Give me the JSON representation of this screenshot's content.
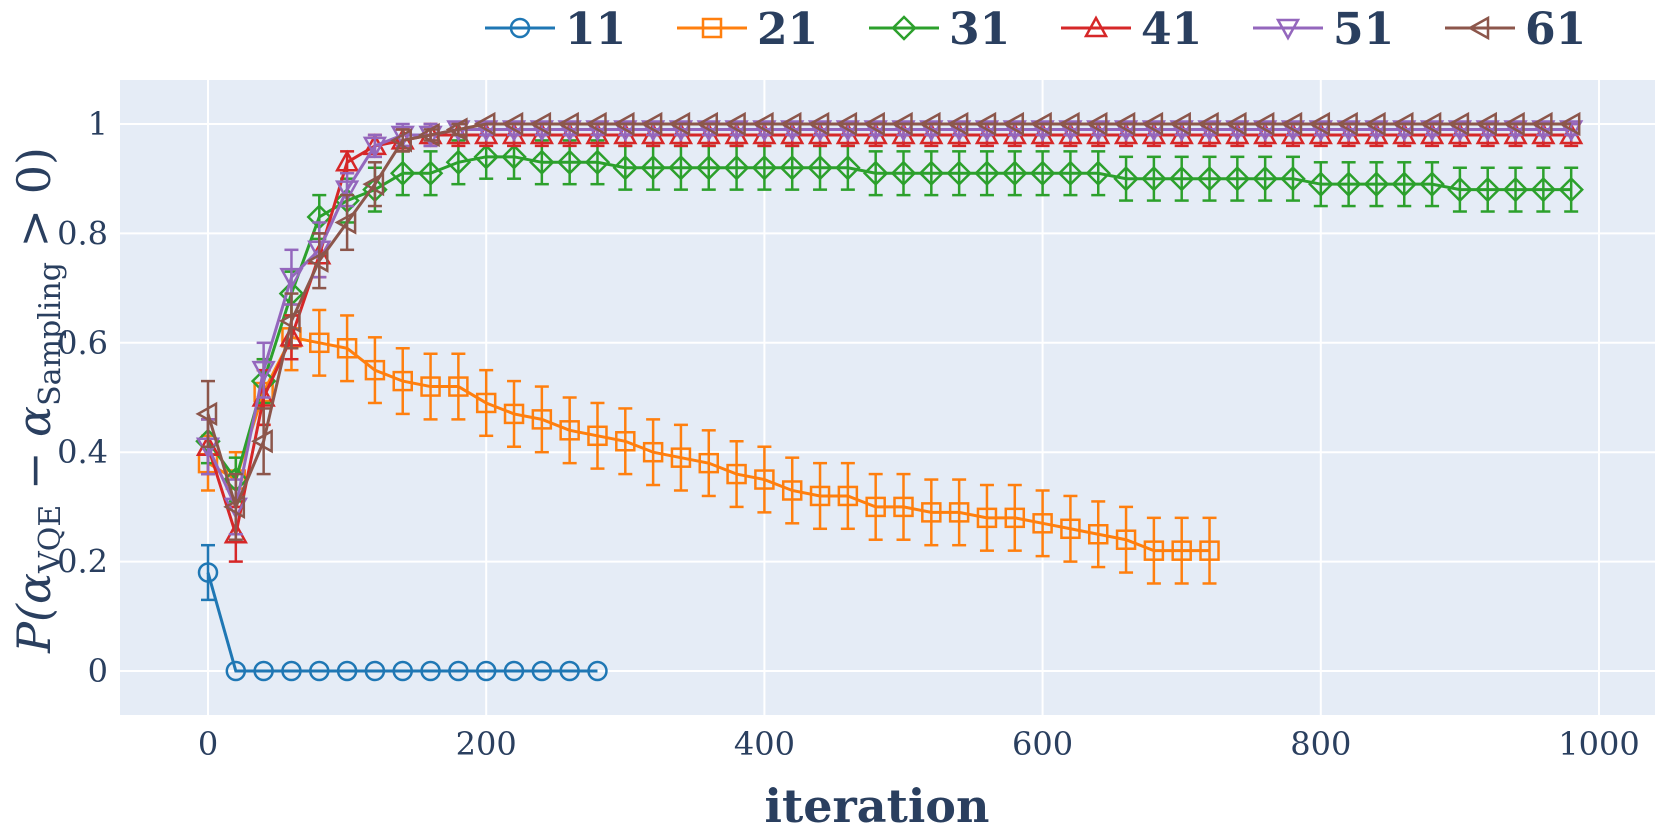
{
  "chart_data": {
    "type": "line",
    "xlabel": "iteration",
    "ylabel": {
      "prefix": "P(α",
      "sub1": "VQE",
      "mid": " − α",
      "sub2": "Sampling",
      "suffix": " > 0)"
    },
    "xlim": [
      -63,
      1000
    ],
    "ylim": [
      -0.075,
      1.08
    ],
    "xticks": [
      0,
      200,
      400,
      600,
      800,
      1000
    ],
    "xtick_labels": [
      "0",
      "200",
      "400",
      "600",
      "800",
      "1000"
    ],
    "yticks": [
      0,
      0.2,
      0.4,
      0.6,
      0.8,
      1
    ],
    "ytick_labels": [
      "0",
      "0.2",
      "0.4",
      "0.6",
      "0.8",
      "1"
    ],
    "legend_position": "top",
    "colors": {
      "plot_bg": "#e5ecf6",
      "grid": "#ffffff",
      "text": "#2a3f5f"
    },
    "series": [
      {
        "name": "11",
        "color": "#1f77b4",
        "marker": "circle",
        "x": [
          0,
          20,
          40,
          60,
          80,
          100,
          120,
          140,
          160,
          180,
          200,
          220,
          240,
          260,
          280
        ],
        "y": [
          0.18,
          0,
          0,
          0,
          0,
          0,
          0,
          0,
          0,
          0,
          0,
          0,
          0,
          0,
          0
        ],
        "err": [
          0.05,
          0,
          0,
          0,
          0,
          0,
          0,
          0,
          0,
          0,
          0,
          0,
          0,
          0,
          0
        ]
      },
      {
        "name": "21",
        "color": "#ff7f0e",
        "marker": "square",
        "x": [
          0,
          20,
          40,
          60,
          80,
          100,
          120,
          140,
          160,
          180,
          200,
          220,
          240,
          260,
          280,
          300,
          320,
          340,
          360,
          380,
          400,
          420,
          440,
          460,
          480,
          500,
          520,
          540,
          560,
          580,
          600,
          620,
          640,
          660,
          680,
          700,
          720
        ],
        "y": [
          0.38,
          0.35,
          0.51,
          0.61,
          0.6,
          0.59,
          0.55,
          0.53,
          0.52,
          0.52,
          0.49,
          0.47,
          0.46,
          0.44,
          0.43,
          0.42,
          0.4,
          0.39,
          0.38,
          0.36,
          0.35,
          0.33,
          0.32,
          0.32,
          0.3,
          0.3,
          0.29,
          0.29,
          0.28,
          0.28,
          0.27,
          0.26,
          0.25,
          0.24,
          0.22,
          0.22,
          0.22
        ],
        "err": [
          0.05,
          0.05,
          0.06,
          0.06,
          0.06,
          0.06,
          0.06,
          0.06,
          0.06,
          0.06,
          0.06,
          0.06,
          0.06,
          0.06,
          0.06,
          0.06,
          0.06,
          0.06,
          0.06,
          0.06,
          0.06,
          0.06,
          0.06,
          0.06,
          0.06,
          0.06,
          0.06,
          0.06,
          0.06,
          0.06,
          0.06,
          0.06,
          0.06,
          0.06,
          0.06,
          0.06,
          0.06
        ]
      },
      {
        "name": "31",
        "color": "#2ca02c",
        "marker": "diamond",
        "x": [
          0,
          20,
          40,
          60,
          80,
          100,
          120,
          140,
          160,
          180,
          200,
          220,
          240,
          260,
          280,
          300,
          320,
          340,
          360,
          380,
          400,
          420,
          440,
          460,
          480,
          500,
          520,
          540,
          560,
          580,
          600,
          620,
          640,
          660,
          680,
          700,
          720,
          740,
          760,
          780,
          800,
          820,
          840,
          860,
          880,
          900,
          920,
          940,
          960,
          980
        ],
        "y": [
          0.42,
          0.35,
          0.53,
          0.69,
          0.83,
          0.86,
          0.88,
          0.91,
          0.91,
          0.93,
          0.94,
          0.94,
          0.93,
          0.93,
          0.93,
          0.92,
          0.92,
          0.92,
          0.92,
          0.92,
          0.92,
          0.92,
          0.92,
          0.92,
          0.91,
          0.91,
          0.91,
          0.91,
          0.91,
          0.91,
          0.91,
          0.91,
          0.91,
          0.9,
          0.9,
          0.9,
          0.9,
          0.9,
          0.9,
          0.9,
          0.89,
          0.89,
          0.89,
          0.89,
          0.89,
          0.88,
          0.88,
          0.88,
          0.88,
          0.88
        ],
        "err": [
          0.04,
          0.04,
          0.04,
          0.04,
          0.04,
          0.04,
          0.04,
          0.04,
          0.04,
          0.04,
          0.04,
          0.04,
          0.04,
          0.04,
          0.04,
          0.04,
          0.04,
          0.04,
          0.04,
          0.04,
          0.04,
          0.04,
          0.04,
          0.04,
          0.04,
          0.04,
          0.04,
          0.04,
          0.04,
          0.04,
          0.04,
          0.04,
          0.04,
          0.04,
          0.04,
          0.04,
          0.04,
          0.04,
          0.04,
          0.04,
          0.04,
          0.04,
          0.04,
          0.04,
          0.04,
          0.04,
          0.04,
          0.04,
          0.04,
          0.04
        ]
      },
      {
        "name": "41",
        "color": "#d62728",
        "marker": "triangle-up",
        "x": [
          0,
          20,
          40,
          60,
          80,
          100,
          120,
          140,
          160,
          180,
          200,
          220,
          240,
          260,
          280,
          300,
          320,
          340,
          360,
          380,
          400,
          420,
          440,
          460,
          480,
          500,
          520,
          540,
          560,
          580,
          600,
          620,
          640,
          660,
          680,
          700,
          720,
          740,
          760,
          780,
          800,
          820,
          840,
          860,
          880,
          900,
          920,
          940,
          960,
          980
        ],
        "y": [
          0.41,
          0.25,
          0.5,
          0.61,
          0.76,
          0.93,
          0.96,
          0.97,
          0.98,
          0.98,
          0.98,
          0.98,
          0.98,
          0.98,
          0.98,
          0.98,
          0.98,
          0.98,
          0.98,
          0.98,
          0.98,
          0.98,
          0.98,
          0.98,
          0.98,
          0.98,
          0.98,
          0.98,
          0.98,
          0.98,
          0.98,
          0.98,
          0.98,
          0.98,
          0.98,
          0.98,
          0.98,
          0.98,
          0.98,
          0.98,
          0.98,
          0.98,
          0.98,
          0.98,
          0.98,
          0.98,
          0.98,
          0.98,
          0.98,
          0.98
        ],
        "err": [
          0.05,
          0.05,
          0.05,
          0.04,
          0.04,
          0.02,
          0.02,
          0.02,
          0.02,
          0.02,
          0.02,
          0.02,
          0.02,
          0.02,
          0.02,
          0.02,
          0.02,
          0.02,
          0.02,
          0.02,
          0.02,
          0.02,
          0.02,
          0.02,
          0.02,
          0.02,
          0.02,
          0.02,
          0.02,
          0.02,
          0.02,
          0.02,
          0.02,
          0.02,
          0.02,
          0.02,
          0.02,
          0.02,
          0.02,
          0.02,
          0.02,
          0.02,
          0.02,
          0.02,
          0.02,
          0.02,
          0.02,
          0.02,
          0.02,
          0.02
        ]
      },
      {
        "name": "51",
        "color": "#9467bd",
        "marker": "triangle-down",
        "x": [
          0,
          20,
          40,
          60,
          80,
          100,
          120,
          140,
          160,
          180,
          200,
          220,
          240,
          260,
          280,
          300,
          320,
          340,
          360,
          380,
          400,
          420,
          440,
          460,
          480,
          500,
          520,
          540,
          560,
          580,
          600,
          620,
          640,
          660,
          680,
          700,
          720,
          740,
          760,
          780,
          800,
          820,
          840,
          860,
          880,
          900,
          920,
          940,
          960,
          980
        ],
        "y": [
          0.41,
          0.3,
          0.55,
          0.72,
          0.77,
          0.88,
          0.96,
          0.98,
          0.98,
          0.99,
          0.99,
          0.99,
          0.99,
          0.99,
          0.99,
          0.99,
          0.99,
          0.99,
          0.99,
          0.99,
          0.99,
          0.99,
          0.99,
          0.99,
          0.99,
          0.99,
          0.99,
          0.99,
          0.99,
          0.99,
          0.99,
          0.99,
          0.99,
          0.99,
          0.99,
          0.99,
          0.99,
          0.99,
          0.99,
          0.99,
          0.99,
          0.99,
          0.99,
          0.99,
          0.99,
          0.99,
          0.99,
          0.99,
          0.99,
          0.99
        ],
        "err": [
          0.05,
          0.05,
          0.05,
          0.05,
          0.05,
          0.03,
          0.02,
          0.02,
          0.02,
          0.01,
          0.01,
          0.01,
          0.01,
          0.01,
          0.01,
          0.01,
          0.01,
          0.01,
          0.01,
          0.01,
          0.01,
          0.01,
          0.01,
          0.01,
          0.01,
          0.01,
          0.01,
          0.01,
          0.01,
          0.01,
          0.01,
          0.01,
          0.01,
          0.01,
          0.01,
          0.01,
          0.01,
          0.01,
          0.01,
          0.01,
          0.01,
          0.01,
          0.01,
          0.01,
          0.01,
          0.01,
          0.01,
          0.01,
          0.01,
          0.01
        ]
      },
      {
        "name": "61",
        "color": "#8c564b",
        "marker": "triangle-left",
        "x": [
          0,
          20,
          40,
          60,
          80,
          100,
          120,
          140,
          160,
          180,
          200,
          220,
          240,
          260,
          280,
          300,
          320,
          340,
          360,
          380,
          400,
          420,
          440,
          460,
          480,
          500,
          520,
          540,
          560,
          580,
          600,
          620,
          640,
          660,
          680,
          700,
          720,
          740,
          760,
          780,
          800,
          820,
          840,
          860,
          880,
          900,
          920,
          940,
          960,
          980
        ],
        "y": [
          0.47,
          0.3,
          0.42,
          0.64,
          0.75,
          0.82,
          0.89,
          0.97,
          0.98,
          0.99,
          1.0,
          1.0,
          1.0,
          1.0,
          1.0,
          1.0,
          1.0,
          1.0,
          1.0,
          1.0,
          1.0,
          1.0,
          1.0,
          1.0,
          1.0,
          1.0,
          1.0,
          1.0,
          1.0,
          1.0,
          1.0,
          1.0,
          1.0,
          1.0,
          1.0,
          1.0,
          1.0,
          1.0,
          1.0,
          1.0,
          1.0,
          1.0,
          1.0,
          1.0,
          1.0,
          1.0,
          1.0,
          1.0,
          1.0,
          1.0
        ],
        "err": [
          0.06,
          0.06,
          0.06,
          0.05,
          0.05,
          0.05,
          0.04,
          0.02,
          0.01,
          0.01,
          0,
          0,
          0,
          0,
          0,
          0,
          0,
          0,
          0,
          0,
          0,
          0,
          0,
          0,
          0,
          0,
          0,
          0,
          0,
          0,
          0,
          0,
          0,
          0,
          0,
          0,
          0,
          0,
          0,
          0,
          0,
          0,
          0,
          0,
          0,
          0,
          0,
          0,
          0,
          0
        ]
      }
    ]
  }
}
